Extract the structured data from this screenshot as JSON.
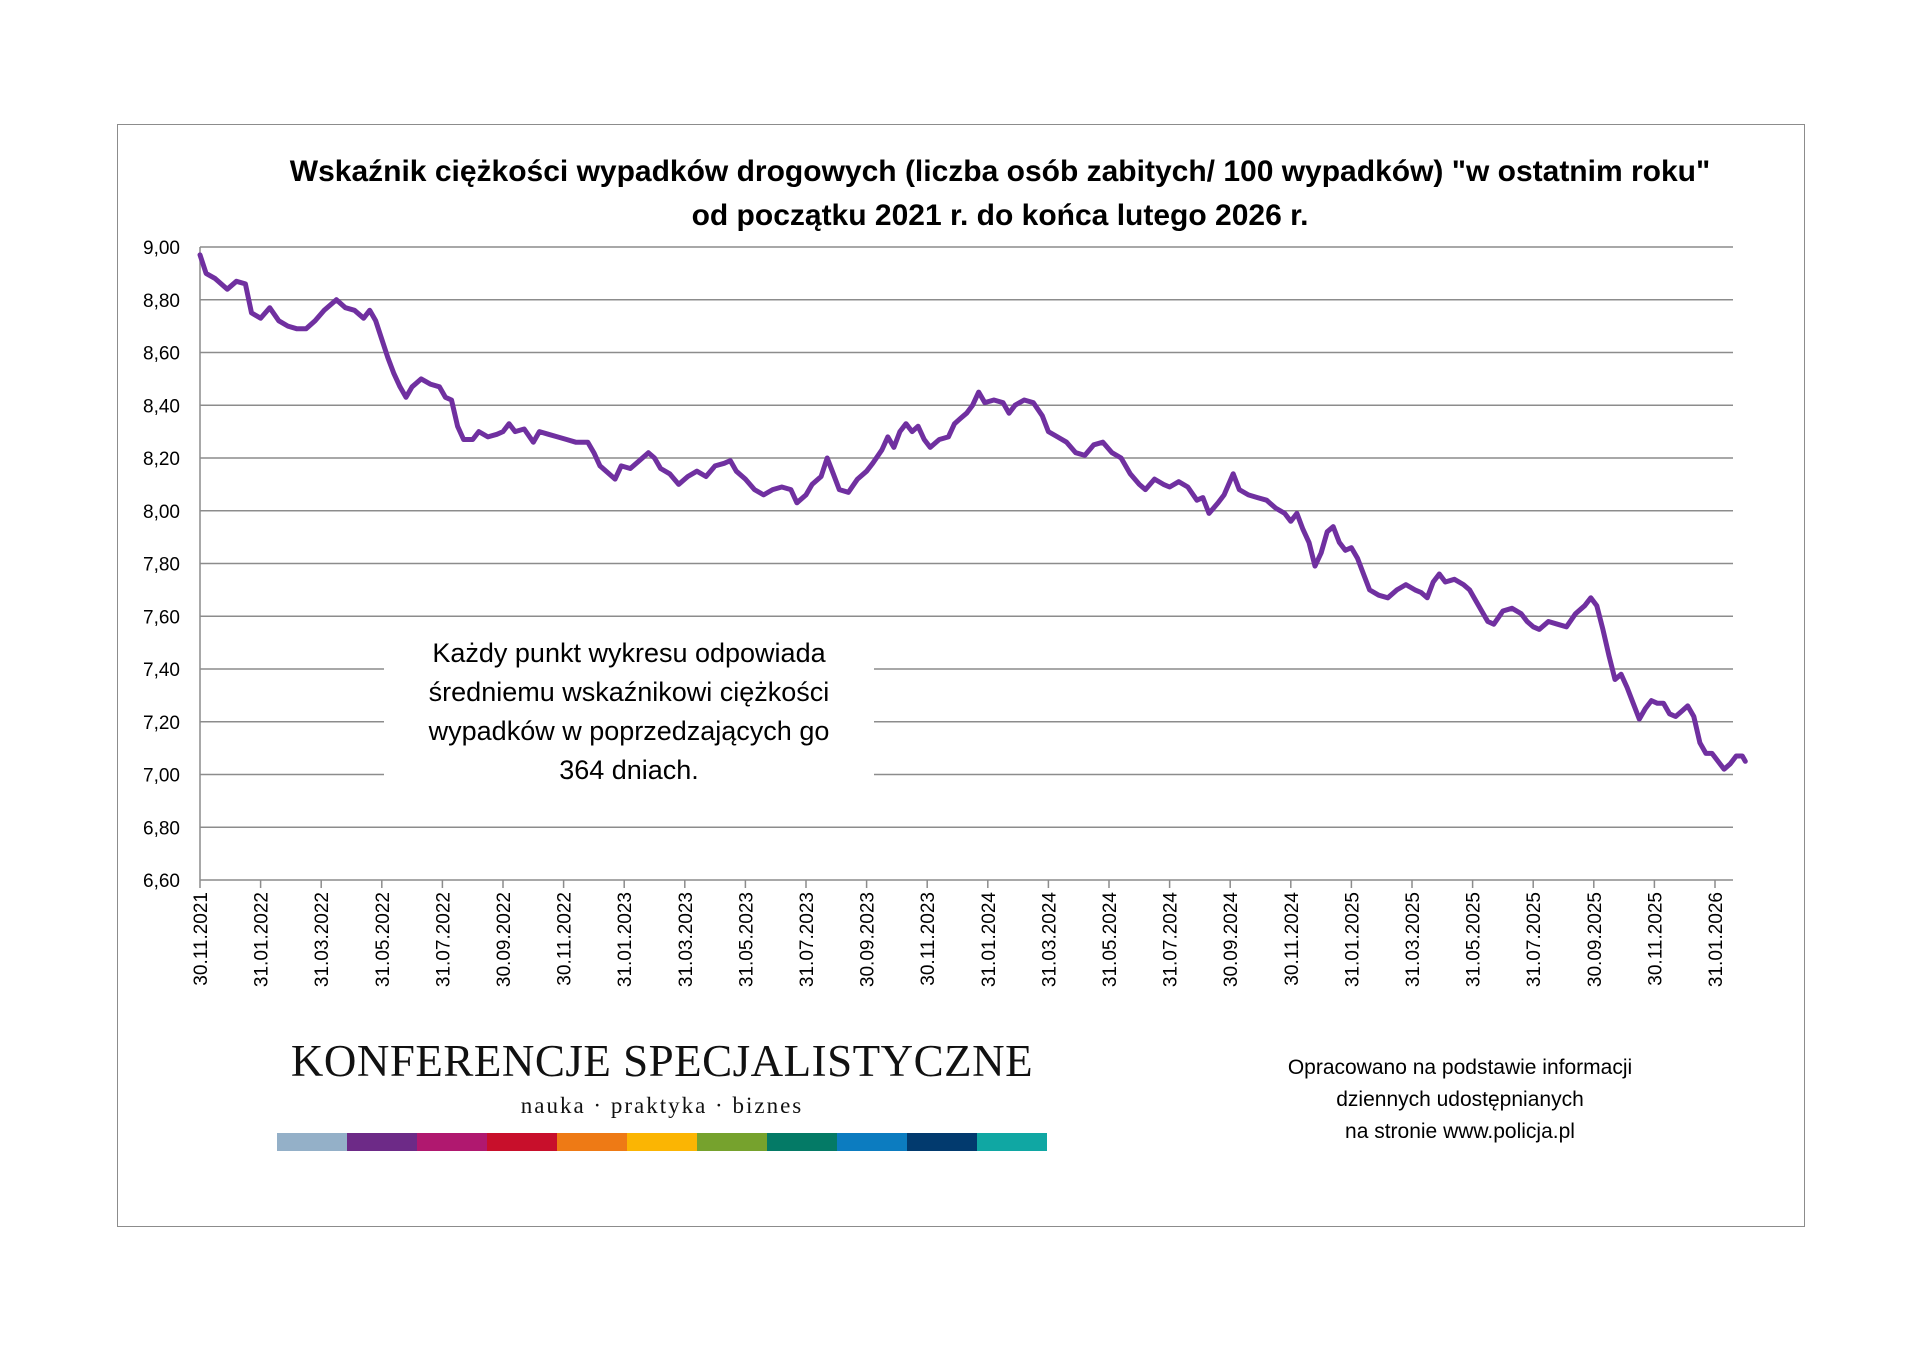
{
  "chart_data": {
    "type": "line",
    "title": [
      "Wskaźnik ciężkości wypadków drogowych (liczba osób zabitych/ 100 wypadków) \"w ostatnim roku\"",
      "od początku 2021 r. do końca lutego 2026 r."
    ],
    "xlabel": "",
    "ylabel": "",
    "ylim": [
      6.6,
      9.0
    ],
    "ytick_labels": [
      "9,00",
      "8,80",
      "8,60",
      "8,40",
      "8,20",
      "8,00",
      "7,80",
      "7,60",
      "7,40",
      "7,20",
      "7,00",
      "6,80",
      "6,60"
    ],
    "x_tick_labels": [
      "30.11.2021",
      "31.01.2022",
      "31.03.2022",
      "31.05.2022",
      "31.07.2022",
      "30.09.2022",
      "30.11.2022",
      "31.01.2023",
      "31.03.2023",
      "31.05.2023",
      "31.07.2023",
      "30.09.2023",
      "30.11.2023",
      "31.01.2024",
      "31.03.2024",
      "31.05.2024",
      "31.07.2024",
      "30.09.2024",
      "30.11.2024",
      "31.01.2025",
      "31.03.2025",
      "31.05.2025",
      "31.07.2025",
      "30.09.2025",
      "30.11.2025",
      "31.01.2026"
    ],
    "x_range_months": [
      0,
      25.5
    ],
    "grid": true,
    "series": [
      {
        "name": "Wskaźnik ciężkości wypadków",
        "color": "#7030a0",
        "points": [
          [
            0.0,
            8.97
          ],
          [
            0.1,
            8.9
          ],
          [
            0.25,
            8.88
          ],
          [
            0.45,
            8.84
          ],
          [
            0.6,
            8.87
          ],
          [
            0.75,
            8.86
          ],
          [
            0.85,
            8.75
          ],
          [
            1.0,
            8.73
          ],
          [
            1.15,
            8.77
          ],
          [
            1.3,
            8.72
          ],
          [
            1.45,
            8.7
          ],
          [
            1.6,
            8.69
          ],
          [
            1.75,
            8.69
          ],
          [
            1.9,
            8.72
          ],
          [
            2.05,
            8.76
          ],
          [
            2.25,
            8.8
          ],
          [
            2.4,
            8.77
          ],
          [
            2.55,
            8.76
          ],
          [
            2.7,
            8.73
          ],
          [
            2.8,
            8.76
          ],
          [
            2.9,
            8.72
          ],
          [
            3.0,
            8.65
          ],
          [
            3.1,
            8.58
          ],
          [
            3.2,
            8.52
          ],
          [
            3.3,
            8.47
          ],
          [
            3.4,
            8.43
          ],
          [
            3.5,
            8.47
          ],
          [
            3.65,
            8.5
          ],
          [
            3.8,
            8.48
          ],
          [
            3.95,
            8.47
          ],
          [
            4.05,
            8.43
          ],
          [
            4.15,
            8.42
          ],
          [
            4.25,
            8.32
          ],
          [
            4.35,
            8.27
          ],
          [
            4.5,
            8.27
          ],
          [
            4.6,
            8.3
          ],
          [
            4.75,
            8.28
          ],
          [
            4.9,
            8.29
          ],
          [
            5.0,
            8.3
          ],
          [
            5.1,
            8.33
          ],
          [
            5.2,
            8.3
          ],
          [
            5.35,
            8.31
          ],
          [
            5.5,
            8.26
          ],
          [
            5.6,
            8.3
          ],
          [
            5.75,
            8.29
          ],
          [
            5.9,
            8.28
          ],
          [
            6.05,
            8.27
          ],
          [
            6.2,
            8.26
          ],
          [
            6.4,
            8.26
          ],
          [
            6.5,
            8.22
          ],
          [
            6.6,
            8.17
          ],
          [
            6.75,
            8.14
          ],
          [
            6.85,
            8.12
          ],
          [
            6.95,
            8.17
          ],
          [
            7.1,
            8.16
          ],
          [
            7.25,
            8.19
          ],
          [
            7.4,
            8.22
          ],
          [
            7.5,
            8.2
          ],
          [
            7.6,
            8.16
          ],
          [
            7.75,
            8.14
          ],
          [
            7.9,
            8.1
          ],
          [
            8.05,
            8.13
          ],
          [
            8.2,
            8.15
          ],
          [
            8.35,
            8.13
          ],
          [
            8.5,
            8.17
          ],
          [
            8.65,
            8.18
          ],
          [
            8.75,
            8.19
          ],
          [
            8.85,
            8.15
          ],
          [
            9.0,
            8.12
          ],
          [
            9.15,
            8.08
          ],
          [
            9.3,
            8.06
          ],
          [
            9.45,
            8.08
          ],
          [
            9.6,
            8.09
          ],
          [
            9.75,
            8.08
          ],
          [
            9.85,
            8.03
          ],
          [
            10.0,
            8.06
          ],
          [
            10.1,
            8.1
          ],
          [
            10.25,
            8.13
          ],
          [
            10.35,
            8.2
          ],
          [
            10.45,
            8.14
          ],
          [
            10.55,
            8.08
          ],
          [
            10.7,
            8.07
          ],
          [
            10.85,
            8.12
          ],
          [
            11.0,
            8.15
          ],
          [
            11.1,
            8.18
          ],
          [
            11.25,
            8.23
          ],
          [
            11.35,
            8.28
          ],
          [
            11.45,
            8.24
          ],
          [
            11.55,
            8.3
          ],
          [
            11.65,
            8.33
          ],
          [
            11.75,
            8.3
          ],
          [
            11.85,
            8.32
          ],
          [
            11.95,
            8.27
          ],
          [
            12.05,
            8.24
          ],
          [
            12.2,
            8.27
          ],
          [
            12.35,
            8.28
          ],
          [
            12.45,
            8.33
          ],
          [
            12.55,
            8.35
          ],
          [
            12.65,
            8.37
          ],
          [
            12.75,
            8.4
          ],
          [
            12.85,
            8.45
          ],
          [
            12.95,
            8.41
          ],
          [
            13.1,
            8.42
          ],
          [
            13.25,
            8.41
          ],
          [
            13.35,
            8.37
          ],
          [
            13.45,
            8.4
          ],
          [
            13.6,
            8.42
          ],
          [
            13.75,
            8.41
          ],
          [
            13.9,
            8.36
          ],
          [
            14.0,
            8.3
          ],
          [
            14.15,
            8.28
          ],
          [
            14.3,
            8.26
          ],
          [
            14.45,
            8.22
          ],
          [
            14.6,
            8.21
          ],
          [
            14.75,
            8.25
          ],
          [
            14.9,
            8.26
          ],
          [
            15.05,
            8.22
          ],
          [
            15.2,
            8.2
          ],
          [
            15.35,
            8.14
          ],
          [
            15.5,
            8.1
          ],
          [
            15.6,
            8.08
          ],
          [
            15.75,
            8.12
          ],
          [
            15.9,
            8.1
          ],
          [
            16.0,
            8.09
          ],
          [
            16.15,
            8.11
          ],
          [
            16.3,
            8.09
          ],
          [
            16.45,
            8.04
          ],
          [
            16.55,
            8.05
          ],
          [
            16.65,
            7.99
          ],
          [
            16.8,
            8.03
          ],
          [
            16.9,
            8.06
          ],
          [
            17.05,
            8.14
          ],
          [
            17.15,
            8.08
          ],
          [
            17.3,
            8.06
          ],
          [
            17.45,
            8.05
          ],
          [
            17.6,
            8.04
          ],
          [
            17.75,
            8.01
          ],
          [
            17.9,
            7.99
          ],
          [
            18.0,
            7.96
          ],
          [
            18.1,
            7.99
          ],
          [
            18.2,
            7.93
          ],
          [
            18.3,
            7.88
          ],
          [
            18.4,
            7.79
          ],
          [
            18.5,
            7.84
          ],
          [
            18.6,
            7.92
          ],
          [
            18.7,
            7.94
          ],
          [
            18.8,
            7.88
          ],
          [
            18.9,
            7.85
          ],
          [
            19.0,
            7.86
          ],
          [
            19.1,
            7.82
          ],
          [
            19.2,
            7.76
          ],
          [
            19.3,
            7.7
          ],
          [
            19.45,
            7.68
          ],
          [
            19.6,
            7.67
          ],
          [
            19.75,
            7.7
          ],
          [
            19.9,
            7.72
          ],
          [
            20.05,
            7.7
          ],
          [
            20.15,
            7.69
          ],
          [
            20.25,
            7.67
          ],
          [
            20.35,
            7.73
          ],
          [
            20.45,
            7.76
          ],
          [
            20.55,
            7.73
          ],
          [
            20.7,
            7.74
          ],
          [
            20.85,
            7.72
          ],
          [
            20.95,
            7.7
          ],
          [
            21.05,
            7.66
          ],
          [
            21.15,
            7.62
          ],
          [
            21.25,
            7.58
          ],
          [
            21.35,
            7.57
          ],
          [
            21.5,
            7.62
          ],
          [
            21.65,
            7.63
          ],
          [
            21.8,
            7.61
          ],
          [
            21.9,
            7.58
          ],
          [
            22.0,
            7.56
          ],
          [
            22.1,
            7.55
          ],
          [
            22.25,
            7.58
          ],
          [
            22.4,
            7.57
          ],
          [
            22.55,
            7.56
          ],
          [
            22.7,
            7.61
          ],
          [
            22.85,
            7.64
          ],
          [
            22.95,
            7.67
          ],
          [
            23.05,
            7.64
          ],
          [
            23.15,
            7.55
          ],
          [
            23.25,
            7.45
          ],
          [
            23.35,
            7.36
          ],
          [
            23.45,
            7.38
          ],
          [
            23.55,
            7.33
          ],
          [
            23.65,
            7.27
          ],
          [
            23.75,
            7.21
          ],
          [
            23.85,
            7.25
          ],
          [
            23.95,
            7.28
          ],
          [
            24.05,
            7.27
          ],
          [
            24.15,
            7.27
          ],
          [
            24.25,
            7.23
          ],
          [
            24.35,
            7.22
          ],
          [
            24.45,
            7.24
          ],
          [
            24.55,
            7.26
          ],
          [
            24.65,
            7.22
          ],
          [
            24.75,
            7.12
          ],
          [
            24.85,
            7.08
          ],
          [
            24.95,
            7.08
          ],
          [
            25.05,
            7.05
          ],
          [
            25.15,
            7.02
          ],
          [
            25.25,
            7.04
          ],
          [
            25.35,
            7.07
          ],
          [
            25.45,
            7.07
          ],
          [
            25.5,
            7.05
          ]
        ]
      }
    ],
    "annotation": [
      "Każdy punkt wykresu odpowiada",
      "średniemu wskaźnikowi ciężkości",
      "wypadków w poprzedzających go",
      "364 dniach."
    ]
  },
  "logo": {
    "title": "KONFERENCJE SPECJALISTYCZNE",
    "tagline": "nauka · praktyka · biznes",
    "stripe_colors": [
      "#94b0c8",
      "#6d2a87",
      "#b0186f",
      "#c80f2b",
      "#ee7a15",
      "#fbb503",
      "#76a22d",
      "#047a66",
      "#0c7cc0",
      "#023a6e",
      "#10a7a3"
    ]
  },
  "source_note": [
    "Opracowano na podstawie informacji",
    "dziennych udostępnianych",
    "na stronie www.policja.pl"
  ]
}
